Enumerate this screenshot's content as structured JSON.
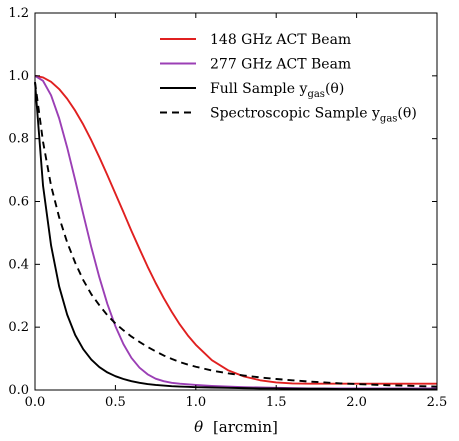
{
  "chart_data": {
    "type": "line",
    "xlabel_prefix": "θ",
    "xlabel_unit": "[arcmin]",
    "ylabel": "",
    "xlim": [
      0.0,
      2.5
    ],
    "ylim": [
      0.0,
      1.2
    ],
    "xticks": [
      0.0,
      0.5,
      1.0,
      1.5,
      2.0,
      2.5
    ],
    "xtick_labels": [
      "0.0",
      "0.5",
      "1.0",
      "1.5",
      "2.0",
      "2.5"
    ],
    "yticks": [
      0.0,
      0.2,
      0.4,
      0.6,
      0.8,
      1.0,
      1.2
    ],
    "ytick_labels": [
      "0.0",
      "0.2",
      "0.4",
      "0.6",
      "0.8",
      "1.0",
      "1.2"
    ],
    "grid": false,
    "legend_position": "top-right",
    "x": [
      0.0,
      0.05,
      0.1,
      0.15,
      0.2,
      0.25,
      0.3,
      0.35,
      0.4,
      0.45,
      0.5,
      0.55,
      0.6,
      0.65,
      0.7,
      0.75,
      0.8,
      0.85,
      0.9,
      0.95,
      1.0,
      1.1,
      1.2,
      1.3,
      1.4,
      1.5,
      1.6,
      1.7,
      1.8,
      1.9,
      2.0,
      2.1,
      2.2,
      2.3,
      2.4,
      2.5
    ],
    "series": [
      {
        "name_main": "148 GHz ACT Beam",
        "name_sub": "",
        "color": "#e02020",
        "dash": "solid",
        "values": [
          1.0,
          0.995,
          0.981,
          0.958,
          0.927,
          0.889,
          0.845,
          0.795,
          0.741,
          0.684,
          0.625,
          0.566,
          0.506,
          0.449,
          0.393,
          0.341,
          0.293,
          0.249,
          0.209,
          0.174,
          0.144,
          0.095,
          0.063,
          0.043,
          0.031,
          0.024,
          0.021,
          0.02,
          0.02,
          0.02,
          0.02,
          0.02,
          0.02,
          0.02,
          0.02,
          0.02
        ]
      },
      {
        "name_main": "277 GHz ACT Beam",
        "name_sub": "",
        "color": "#9b3fb5",
        "dash": "solid",
        "values": [
          1.0,
          0.984,
          0.938,
          0.865,
          0.772,
          0.668,
          0.56,
          0.455,
          0.359,
          0.274,
          0.203,
          0.146,
          0.102,
          0.071,
          0.05,
          0.036,
          0.028,
          0.023,
          0.02,
          0.018,
          0.016,
          0.013,
          0.011,
          0.009,
          0.008,
          0.007,
          0.006,
          0.005,
          0.005,
          0.005,
          0.005,
          0.005,
          0.005,
          0.005,
          0.005,
          0.005
        ]
      },
      {
        "name_main": "Full Sample y",
        "name_sub": "gas",
        "name_tail": "(θ)",
        "color": "#000000",
        "dash": "solid",
        "values": [
          0.98,
          0.65,
          0.46,
          0.33,
          0.24,
          0.175,
          0.13,
          0.097,
          0.073,
          0.056,
          0.044,
          0.035,
          0.028,
          0.023,
          0.019,
          0.016,
          0.014,
          0.012,
          0.011,
          0.01,
          0.009,
          0.008,
          0.007,
          0.006,
          0.005,
          0.005,
          0.004,
          0.004,
          0.004,
          0.003,
          0.003,
          0.003,
          0.003,
          0.003,
          0.002,
          0.002
        ]
      },
      {
        "name_main": "Spectroscopic Sample y",
        "name_sub": "gas",
        "name_tail": "(θ)",
        "color": "#000000",
        "dash": "dashed",
        "values": [
          0.98,
          0.79,
          0.65,
          0.55,
          0.47,
          0.405,
          0.35,
          0.305,
          0.27,
          0.238,
          0.212,
          0.19,
          0.17,
          0.153,
          0.137,
          0.123,
          0.11,
          0.099,
          0.089,
          0.081,
          0.074,
          0.062,
          0.053,
          0.046,
          0.04,
          0.035,
          0.031,
          0.027,
          0.024,
          0.021,
          0.019,
          0.017,
          0.015,
          0.014,
          0.012,
          0.011
        ]
      }
    ]
  }
}
